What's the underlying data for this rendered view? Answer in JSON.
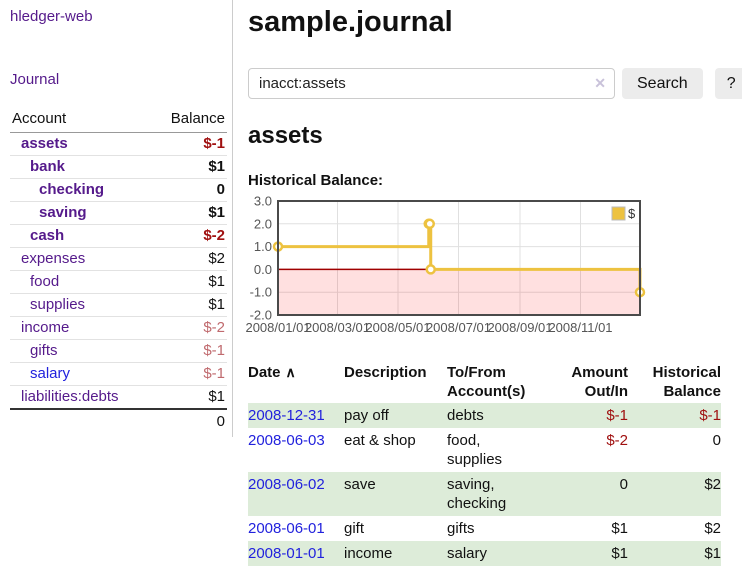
{
  "colors": {
    "accent_purple": "#551a8b",
    "link_blue": "#2222dd",
    "negative_strong": "#a01010",
    "negative_muted": "#c06a6e",
    "row_green": "#ddecd9",
    "series_yellow": "#edc240",
    "zero_line": "#a00000",
    "negative_region": "rgba(255,0,0,0.12)",
    "grid_line": "#e0e0e0",
    "plot_border": "#4a4a4a"
  },
  "sidebar": {
    "brand": "hledger-web",
    "nav_journal": "Journal",
    "table": {
      "headers": {
        "account": "Account",
        "balance": "Balance"
      },
      "rows": [
        {
          "account": "assets",
          "balance": "$-1",
          "level": 1,
          "emph": true,
          "balance_style": "neg-strong",
          "link_style": "purple"
        },
        {
          "account": "bank",
          "balance": "$1",
          "level": 2,
          "emph": true,
          "balance_style": "normal",
          "link_style": "purple"
        },
        {
          "account": "checking",
          "balance": "0",
          "level": 3,
          "emph": true,
          "balance_style": "normal",
          "link_style": "purple"
        },
        {
          "account": "saving",
          "balance": "$1",
          "level": 3,
          "emph": true,
          "balance_style": "normal",
          "link_style": "purple"
        },
        {
          "account": "cash",
          "balance": "$-2",
          "level": 2,
          "emph": true,
          "balance_style": "neg-strong",
          "link_style": "purple"
        },
        {
          "account": "expenses",
          "balance": "$2",
          "level": 1,
          "emph": false,
          "balance_style": "normal",
          "link_style": "purple"
        },
        {
          "account": "food",
          "balance": "$1",
          "level": 2,
          "emph": false,
          "balance_style": "normal",
          "link_style": "purple"
        },
        {
          "account": "supplies",
          "balance": "$1",
          "level": 2,
          "emph": false,
          "balance_style": "normal",
          "link_style": "purple"
        },
        {
          "account": "income",
          "balance": "$-2",
          "level": 1,
          "emph": false,
          "balance_style": "neg-muted",
          "link_style": "purple"
        },
        {
          "account": "gifts",
          "balance": "$-1",
          "level": 2,
          "emph": false,
          "balance_style": "neg-muted",
          "link_style": "purple"
        },
        {
          "account": "salary",
          "balance": "$-1",
          "level": 2,
          "emph": false,
          "balance_style": "neg-muted",
          "link_style": "blue"
        },
        {
          "account": "liabilities:debts",
          "balance": "$1",
          "level": 1,
          "emph": false,
          "balance_style": "normal",
          "link_style": "purple"
        }
      ],
      "total": "0"
    }
  },
  "main": {
    "title": "sample.journal",
    "search": {
      "value": "inacct:assets",
      "clear_icon": "✕",
      "button_label": "Search",
      "help_label": "?"
    },
    "heading": "assets",
    "chart_title": "Historical Balance:"
  },
  "chart_data": {
    "type": "line",
    "title": "Historical Balance",
    "line_style": "step",
    "legend": {
      "label": "$",
      "position": "top-right"
    },
    "series": [
      {
        "name": "$",
        "points": [
          {
            "x": "2008-01-01",
            "y": 1
          },
          {
            "x": "2008-06-01",
            "y": 2
          },
          {
            "x": "2008-06-02",
            "y": 2
          },
          {
            "x": "2008-06-03",
            "y": 0
          },
          {
            "x": "2008-12-31",
            "y": -1
          }
        ]
      }
    ],
    "x_range": [
      "2008-01-01",
      "2008-12-31"
    ],
    "ylim": [
      -2,
      3
    ],
    "yticks": [
      3.0,
      2.0,
      1.0,
      0.0,
      -1.0,
      -2.0
    ],
    "xticks": [
      {
        "date": "2008-01-01",
        "label": "2008/01/01"
      },
      {
        "date": "2008-03-01",
        "label": "2008/03/01"
      },
      {
        "date": "2008-05-01",
        "label": "2008/05/01"
      },
      {
        "date": "2008-07-01",
        "label": "2008/07/01"
      },
      {
        "date": "2008-09-01",
        "label": "2008/09/01"
      },
      {
        "date": "2008-11-01",
        "label": "2008/11/01"
      }
    ],
    "grid": true,
    "negative_region_shaded": true
  },
  "register": {
    "headers": [
      "Date",
      "Description",
      "To/From Account(s)",
      "Amount Out/In",
      "Historical Balance"
    ],
    "sort_indicator": "∧",
    "rows": [
      {
        "date": "2008-12-31",
        "description": "pay off",
        "accounts": "debts",
        "amount": "$-1",
        "balance": "$-1",
        "amount_neg": true,
        "balance_neg": true
      },
      {
        "date": "2008-06-03",
        "description": "eat & shop",
        "accounts": "food, supplies",
        "amount": "$-2",
        "balance": "0",
        "amount_neg": true,
        "balance_neg": false
      },
      {
        "date": "2008-06-02",
        "description": "save",
        "accounts": "saving, checking",
        "amount": "0",
        "balance": "$2",
        "amount_neg": false,
        "balance_neg": false
      },
      {
        "date": "2008-06-01",
        "description": "gift",
        "accounts": "gifts",
        "amount": "$1",
        "balance": "$2",
        "amount_neg": false,
        "balance_neg": false
      },
      {
        "date": "2008-01-01",
        "description": "income",
        "accounts": "salary",
        "amount": "$1",
        "balance": "$1",
        "amount_neg": false,
        "balance_neg": false
      }
    ]
  }
}
